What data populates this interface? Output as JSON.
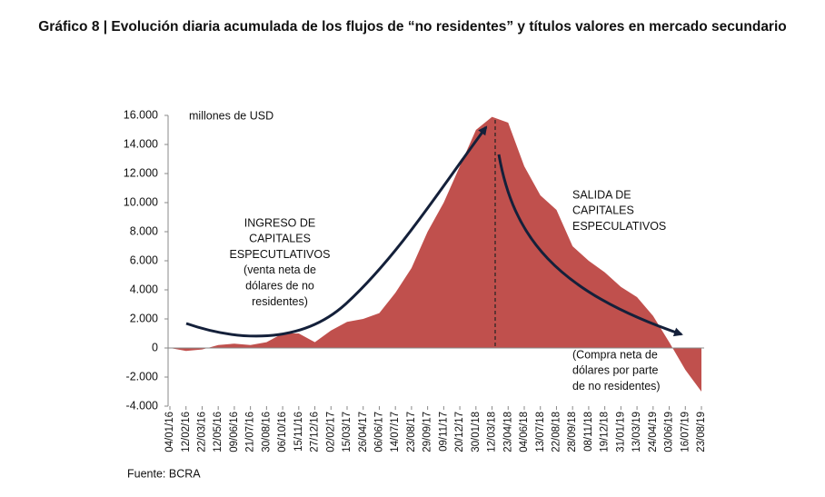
{
  "chart_data": {
    "type": "area",
    "title": "Gráfico 8 | Evolución diaria acumulada de los flujos de “no residentes” y títulos valores en mercado secundario",
    "y_label": "millones de USD",
    "source": "Fuente: BCRA",
    "color": "#c0504d",
    "categories": [
      "04/01/16",
      "12/02/16",
      "22/03/16",
      "12/05/16",
      "09/06/16",
      "21/07/16",
      "30/08/16",
      "06/10/16",
      "15/11/16",
      "27/12/16",
      "02/02/17",
      "15/03/17",
      "26/04/17",
      "06/06/17",
      "14/07/17",
      "23/08/17",
      "29/09/17",
      "09/11/17",
      "20/12/17",
      "30/01/18",
      "12/03/18",
      "23/04/18",
      "04/06/18",
      "13/07/18",
      "22/08/18",
      "28/09/18",
      "08/11/18",
      "19/12/18",
      "31/01/19",
      "13/03/19",
      "24/04/19",
      "03/06/19",
      "16/07/19",
      "23/08/19"
    ],
    "values": [
      0,
      -200,
      -100,
      200,
      300,
      200,
      400,
      1000,
      1000,
      400,
      1200,
      1800,
      2000,
      2400,
      3800,
      5500,
      8000,
      10000,
      12500,
      15000,
      15900,
      15500,
      12500,
      10500,
      9500,
      7000,
      6000,
      5200,
      4200,
      3500,
      2200,
      400,
      -1500,
      -3000
    ],
    "ylim": [
      -4000,
      16000
    ],
    "yticks": [
      {
        "value": 16000,
        "label": "16.000"
      },
      {
        "value": 14000,
        "label": "14.000"
      },
      {
        "value": 12000,
        "label": "12.000"
      },
      {
        "value": 10000,
        "label": "10.000"
      },
      {
        "value": 8000,
        "label": "8.000"
      },
      {
        "value": 6000,
        "label": "6.000"
      },
      {
        "value": 4000,
        "label": "4.000"
      },
      {
        "value": 2000,
        "label": "2.000"
      },
      0,
      {
        "value": -2000,
        "label": "-2.000"
      },
      {
        "value": -4000,
        "label": "-4.000"
      }
    ],
    "annotations": [
      {
        "lines": [
          "INGRESO DE",
          "CAPITALES",
          "ESPECUTLATIVOS",
          "(venta neta de",
          "dólares de no",
          "residentes)"
        ]
      },
      {
        "lines": [
          "SALIDA DE",
          "CAPITALES",
          "ESPECULATIVOS"
        ]
      },
      {
        "lines": [
          "(Compra neta de",
          "dólares por parte",
          "de no residentes)"
        ]
      }
    ]
  }
}
